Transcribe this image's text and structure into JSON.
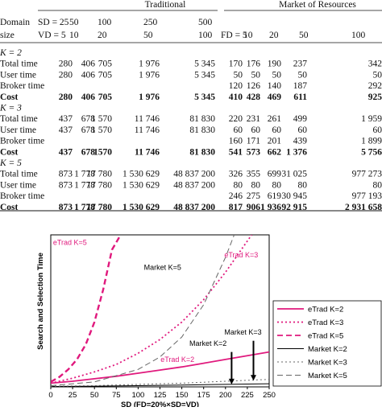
{
  "table": {
    "group_traditional": "Traditional",
    "group_market": "Market of Resources",
    "header_rows": [
      [
        "Domain",
        "SD = 25",
        "50",
        "100",
        "250",
        "500",
        "",
        "",
        "",
        "",
        ""
      ],
      [
        "size",
        "VD = 5",
        "10",
        "20",
        "50",
        "100",
        "FD = 5",
        "10",
        "20",
        "50",
        "100"
      ]
    ],
    "sections": [
      {
        "label": "K = 2",
        "rows": [
          {
            "name": "Total time",
            "bold": false,
            "cells": [
              "280",
              "406",
              "705",
              "1 976",
              "5 345",
              "170",
              "176",
              "190",
              "237",
              "342"
            ]
          },
          {
            "name": "User time",
            "bold": false,
            "cells": [
              "280",
              "406",
              "705",
              "1 976",
              "5 345",
              "50",
              "50",
              "50",
              "50",
              "50"
            ]
          },
          {
            "name": "Broker time",
            "bold": false,
            "cells": [
              "",
              "",
              "",
              "",
              "",
              "120",
              "126",
              "140",
              "187",
              "292"
            ]
          },
          {
            "name": "Cost",
            "bold": true,
            "cells": [
              "280",
              "406",
              "705",
              "1 976",
              "5 345",
              "410",
              "428",
              "469",
              "611",
              "925"
            ]
          }
        ]
      },
      {
        "label": "K = 3",
        "rows": [
          {
            "name": "Total time",
            "bold": false,
            "cells": [
              "437",
              "678",
              "1 570",
              "11 746",
              "81 830",
              "220",
              "231",
              "261",
              "499",
              "1 959"
            ]
          },
          {
            "name": "User time",
            "bold": false,
            "cells": [
              "437",
              "678",
              "1 570",
              "11 746",
              "81 830",
              "60",
              "60",
              "60",
              "60",
              "60"
            ]
          },
          {
            "name": "Broker time",
            "bold": false,
            "cells": [
              "",
              "",
              "",
              "",
              "",
              "160",
              "171",
              "201",
              "439",
              "1 899"
            ]
          },
          {
            "name": "Cost",
            "bold": true,
            "cells": [
              "437",
              "678",
              "1570",
              "11 746",
              "81 830",
              "541",
              "573",
              "662",
              "1 376",
              "5 756"
            ]
          }
        ]
      },
      {
        "label": "K = 5",
        "rows": [
          {
            "name": "Total time",
            "bold": false,
            "cells": [
              "873",
              "1 778",
              "17 780",
              "1 530 629",
              "48 837 200",
              "326",
              "355",
              "699",
              "31 025",
              "977 273"
            ]
          },
          {
            "name": "User time",
            "bold": false,
            "cells": [
              "873",
              "1 778",
              "17 780",
              "1 530 629",
              "48 837 200",
              "80",
              "80",
              "80",
              "80",
              "80"
            ]
          },
          {
            "name": "Broker time",
            "bold": false,
            "cells": [
              "",
              "",
              "",
              "",
              "",
              "246",
              "275",
              "619",
              "30 945",
              "977 193"
            ]
          },
          {
            "name": "Cost",
            "bold": true,
            "cells": [
              "873",
              "1 778",
              "17 780",
              "1 530 629",
              "48 837 200",
              "817",
              "906",
              "1 936",
              "92 915",
              "2 931 658"
            ]
          }
        ]
      }
    ]
  },
  "chart_data": {
    "type": "line",
    "xlabel": "SD (FD=20%×SD=VD)",
    "ylabel": "Search and Selection Time",
    "xlim": [
      0,
      250
    ],
    "xticks": [
      "0",
      "25",
      "50",
      "75",
      "100",
      "125",
      "150",
      "175",
      "200",
      "225",
      "250"
    ],
    "grid": false,
    "legend_position": "right",
    "series": [
      {
        "name": "eTrad K=2",
        "color": "#e0197d",
        "style": "solid",
        "x": [
          0,
          25,
          50,
          75,
          100,
          125,
          150,
          175,
          200,
          225,
          250
        ],
        "y": [
          3,
          4.5,
          6.5,
          8.5,
          11,
          13.5,
          16,
          19,
          22,
          25,
          28
        ]
      },
      {
        "name": "eTrad K=3",
        "color": "#e0197d",
        "style": "dotted",
        "x": [
          0,
          25,
          50,
          75,
          100,
          125,
          150,
          175,
          200,
          225,
          230
        ],
        "y": [
          3,
          7,
          12,
          18,
          27,
          38,
          52,
          70,
          92,
          117,
          122
        ]
      },
      {
        "name": "eTrad K=5",
        "color": "#e0197d",
        "style": "dashed",
        "x": [
          0,
          10,
          20,
          30,
          40,
          50,
          60,
          70,
          80
        ],
        "y": [
          4,
          8,
          14,
          22,
          34,
          52,
          78,
          110,
          122
        ]
      },
      {
        "name": "Market K=2",
        "color": "#000000",
        "style": "solid",
        "x": [
          0,
          50,
          100,
          150,
          200,
          250
        ],
        "y": [
          0.3,
          0.6,
          1,
          1.5,
          2,
          2.5
        ]
      },
      {
        "name": "Market K=3",
        "color": "#666666",
        "style": "dotted",
        "x": [
          0,
          50,
          100,
          150,
          200,
          250
        ],
        "y": [
          0.5,
          1,
          2,
          3,
          4.5,
          6
        ]
      },
      {
        "name": "Market K=5",
        "color": "#666666",
        "style": "dashed",
        "x": [
          0,
          50,
          100,
          125,
          150,
          175,
          200,
          210
        ],
        "y": [
          1,
          4,
          14,
          24,
          40,
          66,
          104,
          122
        ]
      }
    ],
    "annotations": [
      {
        "text": "eTrad K=5",
        "x": 22,
        "y": 114,
        "color": "#e0197d"
      },
      {
        "text": "eTrad K=3",
        "x": 218,
        "y": 104,
        "color": "#e0197d"
      },
      {
        "text": "eTrad K=2",
        "x": 145,
        "y": 20,
        "color": "#e0197d"
      },
      {
        "text": "Market K=5",
        "x": 128,
        "y": 94,
        "color": "#000000"
      },
      {
        "text": "Market K=3",
        "x": 220,
        "y": 42,
        "color": "#000000"
      },
      {
        "text": "Market K=2",
        "x": 180,
        "y": 33,
        "color": "#000000"
      }
    ],
    "arrows": [
      {
        "x": 207,
        "from_y": 28,
        "to_y": 2
      },
      {
        "x": 232,
        "from_y": 37,
        "to_y": 5
      }
    ]
  }
}
